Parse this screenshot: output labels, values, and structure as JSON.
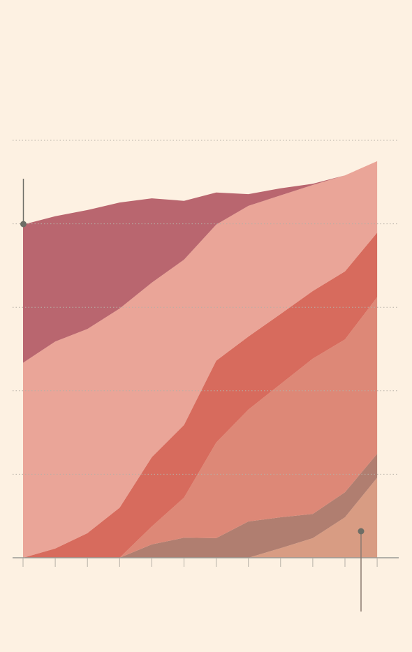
{
  "chart_data": {
    "type": "stacked_area",
    "categories": [
      null,
      null,
      null,
      null,
      null,
      null,
      null,
      null,
      null,
      null,
      null,
      null
    ],
    "series": [
      {
        "color": "#d89c83",
        "values": [
          0,
          0,
          0,
          0,
          0,
          0,
          0,
          0,
          2.3,
          4.7,
          9.7,
          19.2
        ]
      },
      {
        "color": "#b07e70",
        "values": [
          0,
          0,
          0,
          0,
          3.2,
          4.8,
          4.7,
          8.7,
          7.4,
          5.8,
          6.0,
          5.7
        ]
      },
      {
        "color": "#dd8877",
        "values": [
          0,
          0,
          0,
          0,
          4.3,
          9.6,
          22.9,
          26.8,
          31.9,
          37.2,
          36.6,
          37.5
        ]
      },
      {
        "color": "#d76b5d",
        "values": [
          0,
          2.2,
          5.9,
          12.0,
          16.6,
          17.4,
          19.6,
          17.5,
          16.8,
          16.2,
          16.3,
          15.5
        ]
      },
      {
        "color": "#eaa598",
        "values": [
          46.7,
          49.6,
          48.9,
          47.7,
          41.8,
          39.6,
          32.6,
          31.3,
          28.4,
          25.4,
          23.0,
          17.1
        ]
      },
      {
        "color": "#b9666f",
        "values": [
          33.1,
          30.0,
          28.5,
          25.4,
          20.2,
          14.1,
          7.7,
          2.8,
          1.7,
          0.3,
          0,
          0
        ]
      }
    ],
    "ylim": [
      0,
      100
    ],
    "yticks": [
      0,
      20,
      40,
      60,
      80,
      100
    ],
    "grid": true
  }
}
